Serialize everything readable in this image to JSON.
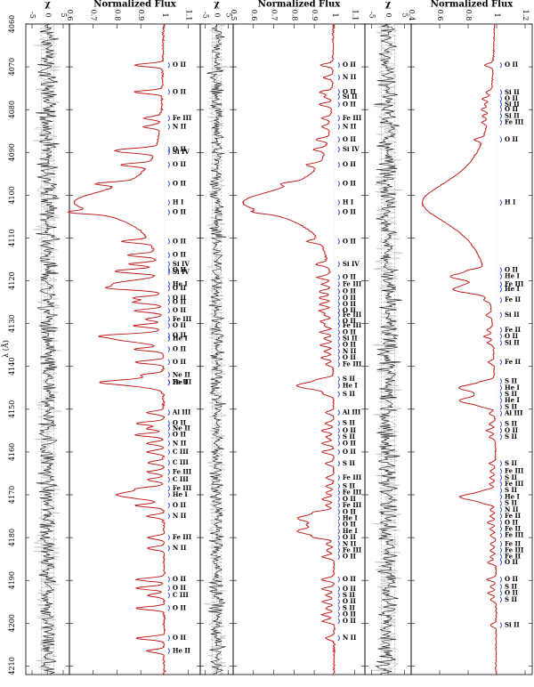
{
  "figure": {
    "x_axis_label": "λ (Å)",
    "x_ticks": [
      "4060",
      "4070",
      "4080",
      "4090",
      "4100",
      "4110",
      "4120",
      "4130",
      "4140",
      "4150",
      "4160",
      "4170",
      "4180",
      "4190",
      "4200",
      "4210"
    ]
  },
  "chart_data": [
    {
      "type": "line",
      "id": "chi-1",
      "title": "χ",
      "ticks": [
        "-5",
        "0",
        "5"
      ],
      "ylim": [
        -7,
        7
      ],
      "series": [],
      "xlim": [
        4060,
        4212
      ]
    },
    {
      "type": "line",
      "id": "flux-1",
      "title": "Normalized Flux",
      "ticks": [
        "0.6",
        "0.7",
        "0.8",
        "0.9",
        "1",
        "1.1"
      ],
      "ylim": [
        0.6,
        1.15
      ],
      "xlim": [
        4060,
        4212
      ],
      "lines": [
        {
          "wl": 4069.6,
          "label": "O II"
        },
        {
          "wl": 4075.9,
          "label": "O II"
        },
        {
          "wl": 4082.0,
          "label": "Fe III"
        },
        {
          "wl": 4084.0,
          "label": "N II"
        },
        {
          "wl": 4089.3,
          "label": "O II"
        },
        {
          "wl": 4089.9,
          "label": "Si IV"
        },
        {
          "wl": 4092.9,
          "label": "O II"
        },
        {
          "wl": 4097.3,
          "label": "O II"
        },
        {
          "wl": 4101.7,
          "label": "H I"
        },
        {
          "wl": 4104.0,
          "label": "O II"
        },
        {
          "wl": 4110.8,
          "label": "O II"
        },
        {
          "wl": 4114.0,
          "label": "O II"
        },
        {
          "wl": 4116.1,
          "label": "Si IV"
        },
        {
          "wl": 4117.5,
          "label": "O II"
        },
        {
          "wl": 4118.0,
          "label": "Si IV"
        },
        {
          "wl": 4120.8,
          "label": "He I"
        },
        {
          "wl": 4121.8,
          "label": "O II"
        },
        {
          "wl": 4124.0,
          "label": "O II"
        },
        {
          "wl": 4125.0,
          "label": "O II"
        },
        {
          "wl": 4127.0,
          "label": "O II"
        },
        {
          "wl": 4129.0,
          "label": "Fe III"
        },
        {
          "wl": 4130.5,
          "label": "O II"
        },
        {
          "wl": 4132.8,
          "label": "O II"
        },
        {
          "wl": 4133.5,
          "label": "He I"
        },
        {
          "wl": 4136.0,
          "label": "O II"
        },
        {
          "wl": 4139.0,
          "label": "O II"
        },
        {
          "wl": 4142.0,
          "label": "Ne II"
        },
        {
          "wl": 4143.7,
          "label": "Fe III"
        },
        {
          "wl": 4143.8,
          "label": "He I"
        },
        {
          "wl": 4150.8,
          "label": "Al III"
        },
        {
          "wl": 4153.3,
          "label": "O II"
        },
        {
          "wl": 4154.5,
          "label": "Ne II"
        },
        {
          "wl": 4156.0,
          "label": "O II"
        },
        {
          "wl": 4158.0,
          "label": "N II"
        },
        {
          "wl": 4160.0,
          "label": "C III"
        },
        {
          "wl": 4162.5,
          "label": "C III"
        },
        {
          "wl": 4164.7,
          "label": "Fe III"
        },
        {
          "wl": 4166.5,
          "label": "C III"
        },
        {
          "wl": 4168.5,
          "label": "Fe III"
        },
        {
          "wl": 4170.0,
          "label": "He I"
        },
        {
          "wl": 4172.5,
          "label": "O II"
        },
        {
          "wl": 4175.0,
          "label": "N II"
        },
        {
          "wl": 4180.0,
          "label": "Fe III"
        },
        {
          "wl": 4182.5,
          "label": "N II"
        },
        {
          "wl": 4189.8,
          "label": "O II"
        },
        {
          "wl": 4191.8,
          "label": "O II"
        },
        {
          "wl": 4193.5,
          "label": "C III"
        },
        {
          "wl": 4196.5,
          "label": "O II"
        },
        {
          "wl": 4203.5,
          "label": "O II"
        },
        {
          "wl": 4206.5,
          "label": "He II"
        }
      ]
    },
    {
      "type": "line",
      "id": "chi-2",
      "title": "χ",
      "ticks": [
        "-5",
        "0",
        "5"
      ],
      "ylim": [
        -7,
        7
      ],
      "xlim": [
        4060,
        4212
      ]
    },
    {
      "type": "line",
      "id": "flux-2",
      "title": "Normalized Flux",
      "ticks": [
        "0.5",
        "0.6",
        "0.7",
        "0.8",
        "0.9",
        "1",
        "1.1"
      ],
      "ylim": [
        0.5,
        1.15
      ],
      "xlim": [
        4060,
        4212
      ],
      "lines": [
        {
          "wl": 4069.6,
          "label": "O II"
        },
        {
          "wl": 4072.5,
          "label": "N II"
        },
        {
          "wl": 4075.9,
          "label": "O II"
        },
        {
          "wl": 4077.0,
          "label": "Si II"
        },
        {
          "wl": 4078.8,
          "label": "O II"
        },
        {
          "wl": 4082.0,
          "label": "Fe III"
        },
        {
          "wl": 4084.0,
          "label": "N II"
        },
        {
          "wl": 4087.0,
          "label": "O II"
        },
        {
          "wl": 4089.3,
          "label": "Si IV"
        },
        {
          "wl": 4092.9,
          "label": "O II"
        },
        {
          "wl": 4097.3,
          "label": "O II"
        },
        {
          "wl": 4101.7,
          "label": "H I"
        },
        {
          "wl": 4104.0,
          "label": "O II"
        },
        {
          "wl": 4110.8,
          "label": "O II"
        },
        {
          "wl": 4116.1,
          "label": "Si IV"
        },
        {
          "wl": 4119.2,
          "label": "O II"
        },
        {
          "wl": 4120.8,
          "label": "Fe III"
        },
        {
          "wl": 4122.5,
          "label": "O II"
        },
        {
          "wl": 4124.0,
          "label": "O II"
        },
        {
          "wl": 4125.5,
          "label": "O II"
        },
        {
          "wl": 4127.0,
          "label": "O II"
        },
        {
          "wl": 4128.0,
          "label": "Fe III"
        },
        {
          "wl": 4129.5,
          "label": "O II"
        },
        {
          "wl": 4130.5,
          "label": "Fe III"
        },
        {
          "wl": 4132.0,
          "label": "O II"
        },
        {
          "wl": 4133.5,
          "label": "Si II"
        },
        {
          "wl": 4135.0,
          "label": "O II"
        },
        {
          "wl": 4136.5,
          "label": "N II"
        },
        {
          "wl": 4138.0,
          "label": "O II"
        },
        {
          "wl": 4139.5,
          "label": "Fe III"
        },
        {
          "wl": 4143.0,
          "label": "S II"
        },
        {
          "wl": 4144.5,
          "label": "He I"
        },
        {
          "wl": 4146.5,
          "label": "S II"
        },
        {
          "wl": 4150.8,
          "label": "Al III"
        },
        {
          "wl": 4153.3,
          "label": "S II"
        },
        {
          "wl": 4155.0,
          "label": "O II"
        },
        {
          "wl": 4156.5,
          "label": "S II"
        },
        {
          "wl": 4158.0,
          "label": "O II"
        },
        {
          "wl": 4160.0,
          "label": "O II"
        },
        {
          "wl": 4162.7,
          "label": "S II"
        },
        {
          "wl": 4166.0,
          "label": "Fe III"
        },
        {
          "wl": 4168.0,
          "label": "S II"
        },
        {
          "wl": 4169.5,
          "label": "Fe III"
        },
        {
          "wl": 4171.0,
          "label": "O II"
        },
        {
          "wl": 4172.5,
          "label": "Fe III"
        },
        {
          "wl": 4174.0,
          "label": "O II"
        },
        {
          "wl": 4175.5,
          "label": "He I"
        },
        {
          "wl": 4177.0,
          "label": "O II"
        },
        {
          "wl": 4178.5,
          "label": "He I"
        },
        {
          "wl": 4180.0,
          "label": "O II"
        },
        {
          "wl": 4181.5,
          "label": "N II"
        },
        {
          "wl": 4183.0,
          "label": "Fe III"
        },
        {
          "wl": 4184.5,
          "label": "O II"
        },
        {
          "wl": 4189.8,
          "label": "O II"
        },
        {
          "wl": 4192.0,
          "label": "O II"
        },
        {
          "wl": 4193.5,
          "label": "S II"
        },
        {
          "wl": 4195.0,
          "label": "O II"
        },
        {
          "wl": 4196.5,
          "label": "S II"
        },
        {
          "wl": 4198.0,
          "label": "O II"
        },
        {
          "wl": 4199.5,
          "label": "O II"
        },
        {
          "wl": 4203.5,
          "label": "N II"
        }
      ]
    },
    {
      "type": "line",
      "id": "chi-3",
      "title": "χ",
      "ticks": [
        "-5",
        "0",
        "5"
      ],
      "ylim": [
        -7,
        7
      ],
      "xlim": [
        4060,
        4212
      ]
    },
    {
      "type": "line",
      "id": "flux-3",
      "title": "Normalized Flux",
      "ticks": [
        "0.4",
        "0.6",
        "0.8",
        "1",
        "1.2"
      ],
      "ylim": [
        0.4,
        1.25
      ],
      "xlim": [
        4060,
        4212
      ],
      "lines": [
        {
          "wl": 4069.6,
          "label": "O II"
        },
        {
          "wl": 4076.0,
          "label": "Si II"
        },
        {
          "wl": 4077.5,
          "label": "O II"
        },
        {
          "wl": 4078.8,
          "label": "Si II"
        },
        {
          "wl": 4080.0,
          "label": "O II"
        },
        {
          "wl": 4081.5,
          "label": "Si II"
        },
        {
          "wl": 4083.0,
          "label": "Fe III"
        },
        {
          "wl": 4087.0,
          "label": "O II"
        },
        {
          "wl": 4101.7,
          "label": "H I"
        },
        {
          "wl": 4117.5,
          "label": "O II"
        },
        {
          "wl": 4119.0,
          "label": "He I"
        },
        {
          "wl": 4120.8,
          "label": "Fe III"
        },
        {
          "wl": 4122.0,
          "label": "He I"
        },
        {
          "wl": 4124.5,
          "label": "Fe II"
        },
        {
          "wl": 4128.0,
          "label": "Si II"
        },
        {
          "wl": 4131.5,
          "label": "Fe II"
        },
        {
          "wl": 4133.0,
          "label": "O II"
        },
        {
          "wl": 4134.5,
          "label": "Si II"
        },
        {
          "wl": 4139.0,
          "label": "Fe II"
        },
        {
          "wl": 4143.5,
          "label": "S II"
        },
        {
          "wl": 4145.0,
          "label": "He I"
        },
        {
          "wl": 4146.5,
          "label": "S II"
        },
        {
          "wl": 4148.0,
          "label": "He I"
        },
        {
          "wl": 4149.5,
          "label": "S II"
        },
        {
          "wl": 4151.0,
          "label": "Al III"
        },
        {
          "wl": 4153.5,
          "label": "S II"
        },
        {
          "wl": 4155.0,
          "label": "O II"
        },
        {
          "wl": 4156.5,
          "label": "S II"
        },
        {
          "wl": 4162.7,
          "label": "S II"
        },
        {
          "wl": 4164.5,
          "label": "Fe III"
        },
        {
          "wl": 4166.0,
          "label": "S II"
        },
        {
          "wl": 4167.5,
          "label": "Fe III"
        },
        {
          "wl": 4169.0,
          "label": "S II"
        },
        {
          "wl": 4170.5,
          "label": "He I"
        },
        {
          "wl": 4172.0,
          "label": "S II"
        },
        {
          "wl": 4173.5,
          "label": "N II"
        },
        {
          "wl": 4175.0,
          "label": "Fe II"
        },
        {
          "wl": 4176.5,
          "label": "O II"
        },
        {
          "wl": 4178.0,
          "label": "Fe II"
        },
        {
          "wl": 4179.5,
          "label": "Fe III"
        },
        {
          "wl": 4181.5,
          "label": "Fe II"
        },
        {
          "wl": 4183.0,
          "label": "Fe III"
        },
        {
          "wl": 4184.5,
          "label": "Fe II"
        },
        {
          "wl": 4185.8,
          "label": "O II"
        },
        {
          "wl": 4189.8,
          "label": "O II"
        },
        {
          "wl": 4191.5,
          "label": "S II"
        },
        {
          "wl": 4193.0,
          "label": "O II"
        },
        {
          "wl": 4194.5,
          "label": "S II"
        },
        {
          "wl": 4200.5,
          "label": "Si II"
        }
      ]
    }
  ]
}
